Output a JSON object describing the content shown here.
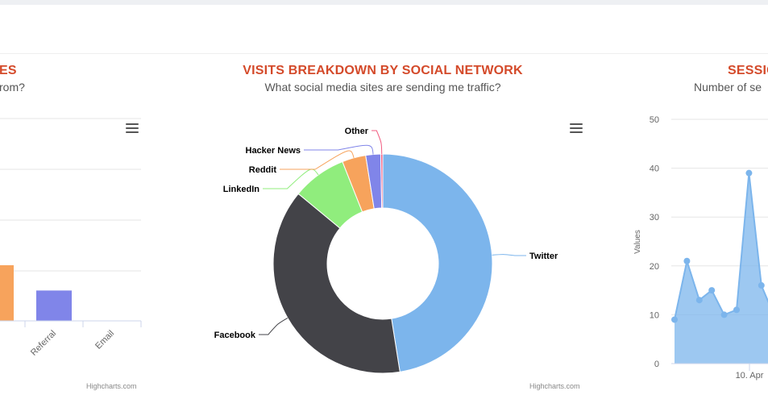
{
  "left_panel": {
    "title": "ES",
    "subtitle": "rom?",
    "credit": "Highcharts.com",
    "chart_data": {
      "type": "bar",
      "categories": [
        "Referral",
        "Email"
      ],
      "values": [
        3,
        0
      ],
      "colors": [
        "#8085e9",
        "#8085e9"
      ],
      "extra_partial_bar": {
        "value": 5.5,
        "color": "#f7a35c"
      },
      "ylim": [
        0,
        20
      ]
    }
  },
  "center_panel": {
    "title": "VISITS BREAKDOWN BY SOCIAL NETWORK",
    "subtitle": "What social media sites are sending me traffic?",
    "credit": "Highcharts.com",
    "chart_data": {
      "type": "pie",
      "donut": true,
      "slices": [
        {
          "name": "Twitter",
          "value": 47.5,
          "color": "#7cb5ec"
        },
        {
          "name": "Facebook",
          "value": 38.5,
          "color": "#434348"
        },
        {
          "name": "LinkedIn",
          "value": 8.0,
          "color": "#90ed7d"
        },
        {
          "name": "Reddit",
          "value": 3.5,
          "color": "#f7a35c"
        },
        {
          "name": "Hacker News",
          "value": 2.2,
          "color": "#8085e9"
        },
        {
          "name": "Other",
          "value": 0.3,
          "color": "#f15c80"
        }
      ]
    }
  },
  "right_panel": {
    "title": "SESSIO",
    "subtitle": "Number of se",
    "chart_data": {
      "type": "area",
      "ylabel": "Values",
      "ylim": [
        0,
        50
      ],
      "yticks": [
        0,
        10,
        20,
        30,
        40,
        50
      ],
      "xtick_label": "10. Apr",
      "x": [
        0,
        1,
        2,
        3,
        4,
        5,
        6,
        7,
        8
      ],
      "values": [
        9,
        21,
        13,
        15,
        10,
        11,
        39,
        16,
        10
      ],
      "color": "#7cb5ec"
    }
  }
}
